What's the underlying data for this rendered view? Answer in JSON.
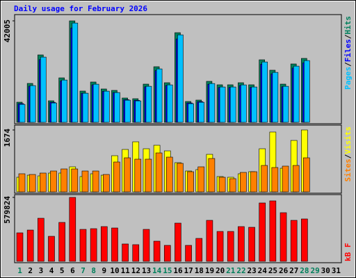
{
  "chart_data": [
    {
      "type": "bar",
      "title": "Daily usage for February 2026",
      "legend_separator": "/",
      "ylim": [
        0,
        42005
      ],
      "yticks": [
        42005
      ],
      "series": [
        {
          "name": "Hits",
          "color": "#00805c",
          "values": [
            8340,
            16110,
            27910,
            8920,
            18410,
            42005,
            12950,
            16690,
            13810,
            13230,
            10070,
            9780,
            15820,
            23020,
            16400,
            37110,
            8630,
            9210,
            16970,
            15540,
            15540,
            16400,
            15540,
            25890,
            21580,
            15820,
            24170,
            26470,
            null,
            null,
            null
          ]
        },
        {
          "name": "Files",
          "color": "#0000ff",
          "values": [
            7760,
            14980,
            25960,
            8300,
            17120,
            39060,
            12040,
            15520,
            12840,
            12300,
            9370,
            9100,
            14710,
            21410,
            15250,
            34510,
            8030,
            8570,
            15780,
            14450,
            14450,
            15250,
            14450,
            24080,
            20070,
            14710,
            22480,
            24620,
            null,
            null,
            null
          ]
        },
        {
          "name": "Pages",
          "color": "#00c0ff",
          "values": [
            7440,
            15210,
            27010,
            8020,
            17510,
            41105,
            12050,
            15790,
            12910,
            12330,
            9170,
            8880,
            14920,
            22120,
            15500,
            36210,
            7730,
            8310,
            16070,
            14640,
            14640,
            15500,
            14640,
            24990,
            20680,
            14920,
            23270,
            25570,
            null,
            null,
            null
          ]
        }
      ]
    },
    {
      "type": "bar",
      "legend_separator": "/",
      "ylim": [
        0,
        1674
      ],
      "yticks": [
        1674
      ],
      "series": [
        {
          "name": "Visits",
          "color": "#ffff00",
          "values": [
            395,
            451,
            432,
            508,
            508,
            677,
            414,
            489,
            451,
            978,
            1147,
            1354,
            1166,
            1260,
            1109,
            790,
            564,
            602,
            1015,
            414,
            395,
            489,
            545,
            1166,
            1618,
            639,
            1391,
            1674,
            null,
            null,
            null
          ]
        },
        {
          "name": "Sites",
          "color": "#ff8000",
          "values": [
            489,
            470,
            508,
            564,
            620,
            620,
            564,
            564,
            470,
            808,
            921,
            884,
            884,
            1053,
            940,
            771,
            545,
            677,
            902,
            395,
            357,
            526,
            545,
            714,
            658,
            696,
            714,
            921,
            null,
            null,
            null
          ]
        }
      ]
    },
    {
      "type": "bar",
      "ylim": [
        0,
        579824
      ],
      "yticks": [
        579824
      ],
      "categories": [
        "1",
        "2",
        "3",
        "4",
        "5",
        "6",
        "7",
        "8",
        "9",
        "10",
        "11",
        "12",
        "13",
        "14",
        "15",
        "16",
        "17",
        "18",
        "19",
        "20",
        "21",
        "22",
        "23",
        "24",
        "25",
        "26",
        "27",
        "28",
        "29",
        "30",
        "31"
      ],
      "category_colors": [
        "#00805c",
        "#000000",
        "#000000",
        "#000000",
        "#000000",
        "#000000",
        "#00805c",
        "#00805c",
        "#000000",
        "#000000",
        "#000000",
        "#000000",
        "#000000",
        "#00805c",
        "#00805c",
        "#000000",
        "#000000",
        "#000000",
        "#000000",
        "#000000",
        "#00805c",
        "#00805c",
        "#000000",
        "#000000",
        "#000000",
        "#000000",
        "#000000",
        "#00805c",
        "#00805c",
        "#000000",
        "#000000"
      ],
      "series": [
        {
          "name": "kB F",
          "color": "#ff0000",
          "values": [
            258382,
            283590,
            390724,
            226872,
            352912,
            579824,
            289892,
            296194,
            315100,
            302496,
            157550,
            151248,
            289892,
            182758,
            144946,
            346610,
            144946,
            207966,
            371818,
            270986,
            270986,
            315100,
            308798,
            529368,
            548274,
            441140,
            371818,
            384422,
            null,
            null,
            null
          ]
        }
      ]
    }
  ]
}
